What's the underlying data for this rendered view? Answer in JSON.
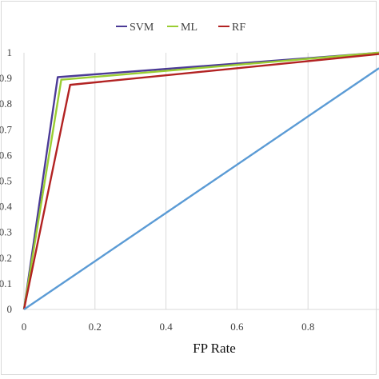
{
  "chart_data": {
    "type": "line",
    "title": "",
    "xlabel": "FP Rate",
    "ylabel": "",
    "xlim": [
      0,
      1
    ],
    "ylim": [
      0,
      1
    ],
    "x_ticks": [
      "0",
      "0.2",
      "0.4",
      "0.6",
      "0.8"
    ],
    "y_ticks": [
      "0",
      "0.1",
      "0.2",
      "0.3",
      "0.4",
      "0.5",
      "0.6",
      "0.7",
      "0.8",
      "0.9",
      "1"
    ],
    "grid": "vertical",
    "legend_position": "top-center",
    "series": [
      {
        "name": "SVM",
        "color": "#4b3a96",
        "x": [
          0,
          0.095,
          1.0
        ],
        "y": [
          0,
          0.905,
          1.0
        ]
      },
      {
        "name": "ML",
        "color": "#9acd32",
        "x": [
          0,
          0.105,
          1.0
        ],
        "y": [
          0,
          0.895,
          1.0
        ]
      },
      {
        "name": "RF",
        "color": "#b22222",
        "x": [
          0,
          0.13,
          1.0
        ],
        "y": [
          0,
          0.875,
          0.995
        ]
      },
      {
        "color": "#5b9bd5",
        "x": [
          0,
          1.0
        ],
        "y": [
          0,
          0.94
        ]
      }
    ]
  }
}
